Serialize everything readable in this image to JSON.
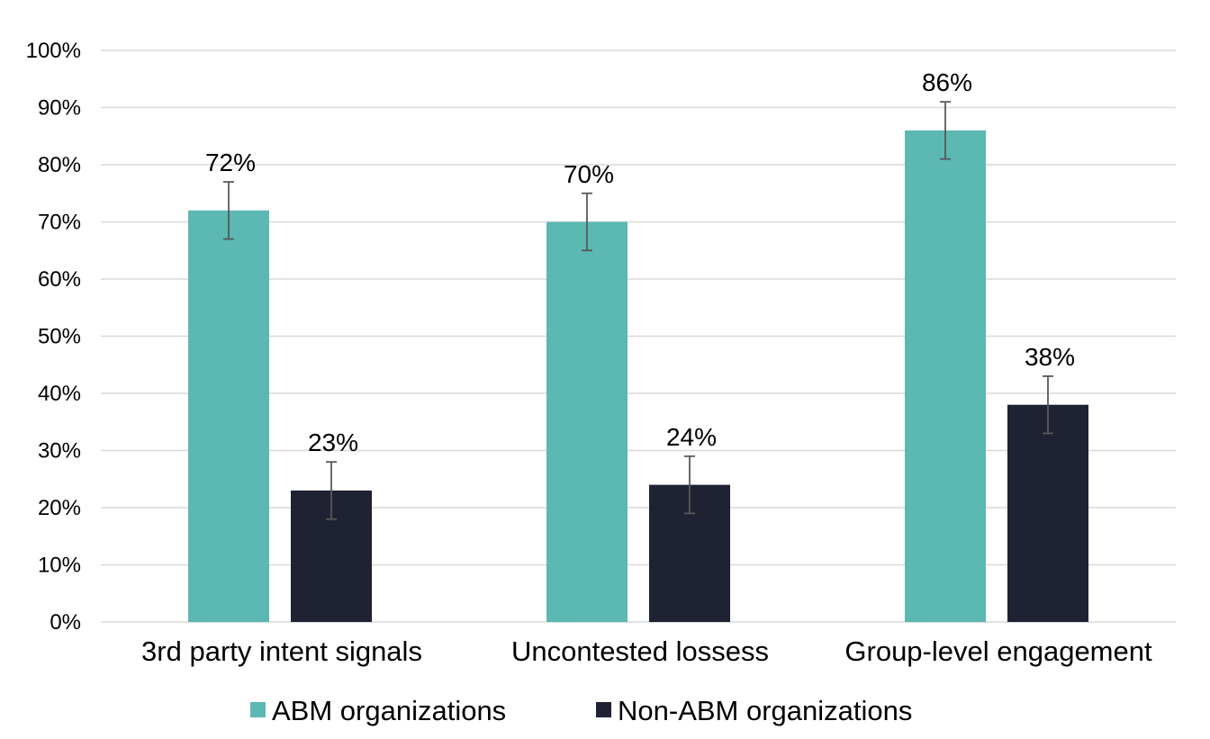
{
  "chart_data": {
    "type": "bar",
    "title": "",
    "xlabel": "",
    "ylabel": "",
    "ylim": [
      0,
      100
    ],
    "y_ticks": [
      0,
      10,
      20,
      30,
      40,
      50,
      60,
      70,
      80,
      90,
      100
    ],
    "y_tick_labels": [
      "0%",
      "10%",
      "20%",
      "30%",
      "40%",
      "50%",
      "60%",
      "70%",
      "80%",
      "90%",
      "100%"
    ],
    "grid": true,
    "legend_position": "bottom",
    "categories": [
      "3rd party intent signals",
      "Uncontested lossess",
      "Group-level engagement"
    ],
    "series": [
      {
        "name": "ABM organizations",
        "color": "#5bb8b2",
        "values": [
          72,
          70,
          86
        ],
        "labels": [
          "72%",
          "70%",
          "86%"
        ],
        "error": [
          5,
          5,
          5
        ]
      },
      {
        "name": "Non-ABM organizations",
        "color": "#1e2233",
        "values": [
          23,
          24,
          38
        ],
        "labels": [
          "23%",
          "24%",
          "38%"
        ],
        "error": [
          5,
          5,
          5
        ]
      }
    ]
  }
}
